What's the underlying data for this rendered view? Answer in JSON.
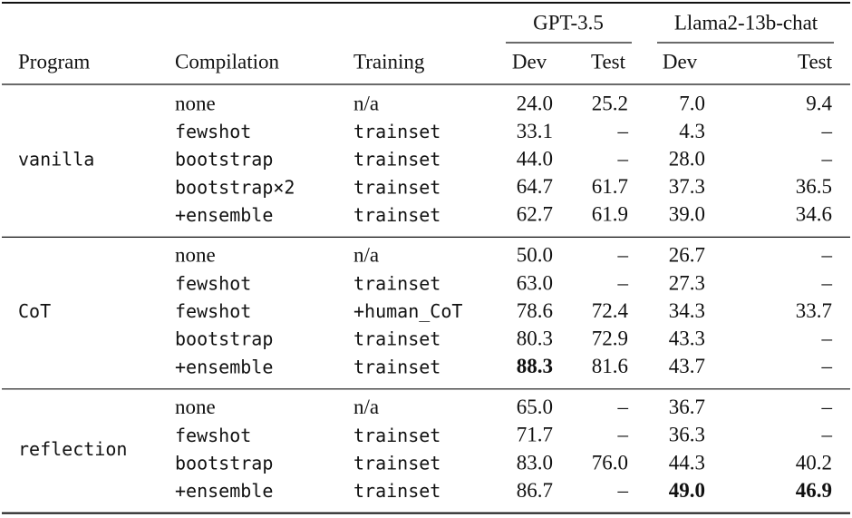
{
  "header": {
    "groups": [
      {
        "label": "GPT-3.5"
      },
      {
        "label": "Llama2-13b-chat"
      }
    ],
    "columns": [
      "Program",
      "Compilation",
      "Training",
      "Dev",
      "Test",
      "Dev",
      "Test"
    ]
  },
  "table": {
    "groups": [
      {
        "program": "vanilla",
        "rows": [
          [
            {
              "text": "none",
              "font": "serif"
            },
            {
              "text": "n/a",
              "font": "serif"
            },
            "24.0",
            "25.2",
            "7.0",
            "9.4"
          ],
          [
            "fewshot",
            "trainset",
            "33.1",
            "–",
            "4.3",
            "–"
          ],
          [
            "bootstrap",
            "trainset",
            "44.0",
            "–",
            "28.0",
            "–"
          ],
          [
            "bootstrap×2",
            "trainset",
            "64.7",
            "61.7",
            "37.3",
            "36.5"
          ],
          [
            "+ensemble",
            "trainset",
            "62.7",
            "61.9",
            "39.0",
            "34.6"
          ]
        ]
      },
      {
        "program": "CoT",
        "rows": [
          [
            {
              "text": "none",
              "font": "serif"
            },
            {
              "text": "n/a",
              "font": "serif"
            },
            "50.0",
            "–",
            "26.7",
            "–"
          ],
          [
            "fewshot",
            "trainset",
            "63.0",
            "–",
            "27.3",
            "–"
          ],
          [
            "fewshot",
            "+human_CoT",
            "78.6",
            "72.4",
            "34.3",
            "33.7"
          ],
          [
            "bootstrap",
            "trainset",
            "80.3",
            "72.9",
            "43.3",
            "–"
          ],
          [
            "+ensemble",
            "trainset",
            {
              "text": "88.3",
              "bold": true
            },
            "81.6",
            "43.7",
            "–"
          ]
        ]
      },
      {
        "program": "reflection",
        "rows": [
          [
            {
              "text": "none",
              "font": "serif"
            },
            {
              "text": "n/a",
              "font": "serif"
            },
            "65.0",
            "–",
            "36.7",
            "–"
          ],
          [
            "fewshot",
            "trainset",
            "71.7",
            "–",
            "36.3",
            "–"
          ],
          [
            "bootstrap",
            "trainset",
            "83.0",
            "76.0",
            "44.3",
            "40.2"
          ],
          [
            "+ensemble",
            "trainset",
            "86.7",
            "–",
            {
              "text": "49.0",
              "bold": true
            },
            {
              "text": "46.9",
              "bold": true
            }
          ]
        ]
      }
    ]
  }
}
